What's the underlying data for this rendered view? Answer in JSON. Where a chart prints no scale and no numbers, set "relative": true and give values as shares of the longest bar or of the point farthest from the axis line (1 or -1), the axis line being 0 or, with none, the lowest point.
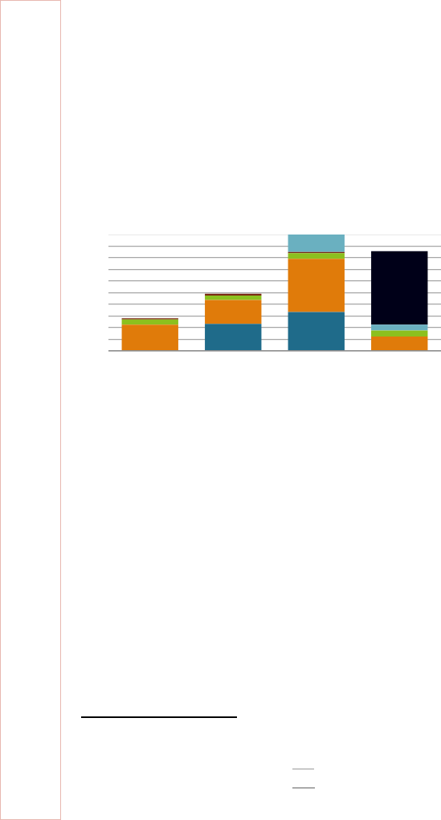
{
  "chart_data": {
    "type": "bar",
    "stacked": true,
    "relative": true,
    "grid": "y",
    "legend": false,
    "categories": [
      null,
      null,
      null,
      null
    ],
    "series": [
      {
        "color": "#1f6b8a",
        "values": [
          0,
          0.231,
          0.332,
          0
        ]
      },
      {
        "color": "#e07b0a",
        "values": [
          0.223,
          0.206,
          0.459,
          0.122
        ]
      },
      {
        "color": "#8cc01e",
        "values": [
          0.046,
          0.038,
          0.048,
          0.051
        ]
      },
      {
        "color": "#7a2a12",
        "values": [
          0.01,
          0.015,
          0.01,
          0
        ]
      },
      {
        "color": "#6ab0c0",
        "values": [
          0,
          0,
          0.151,
          0.051
        ]
      },
      {
        "color": "#000018",
        "values": [
          0,
          0,
          0,
          0.632
        ]
      }
    ]
  }
}
